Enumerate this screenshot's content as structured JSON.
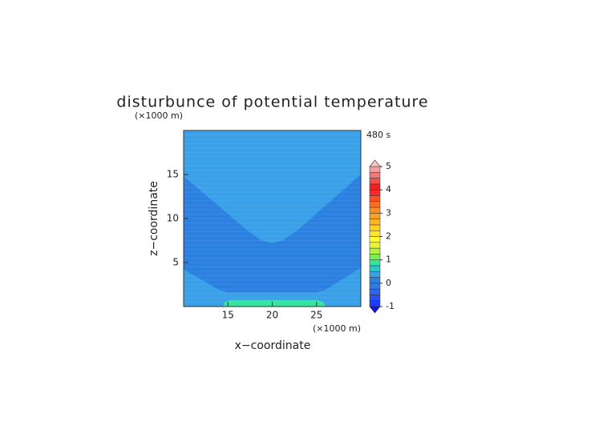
{
  "chart_data": {
    "type": "contour",
    "title": "disturbunce of potential temperature",
    "time_label": "480 s",
    "xlabel": "x−coordinate",
    "ylabel": "z−coordinate",
    "x_unit": "(×1000 m)",
    "y_unit": "(×1000 m)",
    "xlim": [
      10,
      30
    ],
    "ylim": [
      0,
      20
    ],
    "xticks": [
      15,
      20,
      25
    ],
    "yticks": [
      5,
      10,
      15
    ],
    "regions": [
      {
        "value": 0.25,
        "x": [
          10,
          30,
          30,
          10
        ],
        "y": [
          0,
          0,
          20,
          20
        ]
      },
      {
        "value": 0,
        "x": [
          10,
          17,
          18.8,
          20,
          21.2,
          23,
          30,
          30,
          26,
          25,
          15,
          14,
          10
        ],
        "y": [
          14.8,
          8.8,
          7.5,
          7.2,
          7.5,
          8.8,
          15,
          4.4,
          1.9,
          1.6,
          1.6,
          1.9,
          4.2
        ]
      },
      {
        "value": 0.75,
        "x": [
          14.5,
          14.6,
          15.3,
          25,
          25.8,
          26
        ],
        "y": [
          0,
          0.5,
          0.75,
          0.75,
          0.5,
          0
        ]
      }
    ],
    "colorbar": {
      "lim": [
        -1,
        5
      ],
      "ticks": [
        -1,
        0,
        1,
        2,
        3,
        4,
        5
      ],
      "levels": [
        -1,
        -0.75,
        -0.5,
        -0.25,
        0,
        0.25,
        0.5,
        0.75,
        1,
        1.25,
        1.5,
        1.75,
        2,
        2.25,
        2.5,
        2.75,
        3,
        3.25,
        3.5,
        3.75,
        4,
        4.25,
        4.5,
        4.75
      ],
      "colors": [
        "#1e3cff",
        "#2850f5",
        "#2d64f0",
        "#3278e6",
        "#2c80e0",
        "#3aa0e8",
        "#28c8c8",
        "#33e6a0",
        "#78f050",
        "#b4f03c",
        "#e6f532",
        "#ffff28",
        "#ffe628",
        "#ffd21e",
        "#ffb41e",
        "#ffa01e",
        "#ff8c1e",
        "#ff6e1e",
        "#ff5028",
        "#ff2828",
        "#f01e1e",
        "#f05050",
        "#f07878",
        "#f5a0a0"
      ],
      "under_color": "#1414d2",
      "over_color": "#f8c8c8"
    }
  }
}
